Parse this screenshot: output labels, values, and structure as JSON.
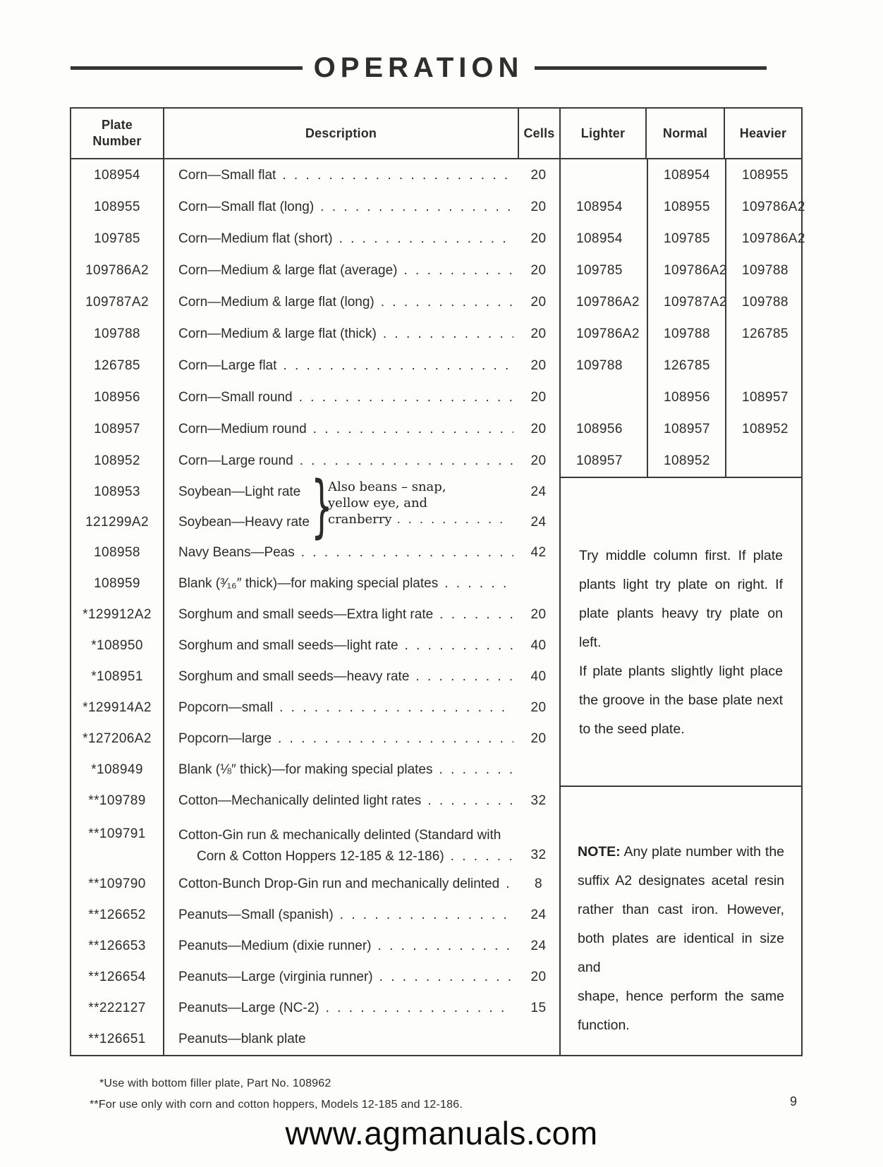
{
  "page": {
    "title": "OPERATION",
    "page_number": "9",
    "watermark": "www.agmanuals.com",
    "footnote1": "*Use with bottom filler plate, Part No. 108962",
    "footnote2": "**For use only with corn and cotton hoppers, Models 12-185 and 12-186."
  },
  "table": {
    "headers": {
      "plate": "Plate Number",
      "description": "Description",
      "cells": "Cells",
      "lighter": "Lighter",
      "normal": "Normal",
      "heavier": "Heavier"
    },
    "corn_rows": [
      {
        "plate": "108954",
        "desc": "Corn—Small flat",
        "cells": "20",
        "lighter": "",
        "normal": "108954",
        "heavier": "108955"
      },
      {
        "plate": "108955",
        "desc": "Corn—Small flat (long)",
        "cells": "20",
        "lighter": "108954",
        "normal": "108955",
        "heavier": "109786A2"
      },
      {
        "plate": "109785",
        "desc": "Corn—Medium flat (short)",
        "cells": "20",
        "lighter": "108954",
        "normal": "109785",
        "heavier": "109786A2"
      },
      {
        "plate": "109786A2",
        "desc": "Corn—Medium & large flat (average)",
        "cells": "20",
        "lighter": "109785",
        "normal": "109786A2",
        "heavier": "109788"
      },
      {
        "plate": "109787A2",
        "desc": "Corn—Medium & large flat (long)",
        "cells": "20",
        "lighter": "109786A2",
        "normal": "109787A2",
        "heavier": "109788"
      },
      {
        "plate": "109788",
        "desc": "Corn—Medium & large flat (thick)",
        "cells": "20",
        "lighter": "109786A2",
        "normal": "109788",
        "heavier": "126785"
      },
      {
        "plate": "126785",
        "desc": "Corn—Large flat",
        "cells": "20",
        "lighter": "109788",
        "normal": "126785",
        "heavier": ""
      },
      {
        "plate": "108956",
        "desc": "Corn—Small round",
        "cells": "20",
        "lighter": "",
        "normal": "108956",
        "heavier": "108957"
      },
      {
        "plate": "108957",
        "desc": "Corn—Medium round",
        "cells": "20",
        "lighter": "108956",
        "normal": "108957",
        "heavier": "108952"
      },
      {
        "plate": "108952",
        "desc": "Corn—Large round",
        "cells": "20",
        "lighter": "108957",
        "normal": "108952",
        "heavier": ""
      }
    ],
    "soybean": {
      "rows": [
        {
          "plate": "108953",
          "desc": "Soybean—Light rate",
          "cells": "24"
        },
        {
          "plate": "121299A2",
          "desc": "Soybean—Heavy rate",
          "cells": "24"
        }
      ],
      "brace": "}",
      "note_line1": "Also beans – snap,",
      "note_line2": "yellow eye, and",
      "note_line3": "cranberry"
    },
    "mid_rows": [
      {
        "plate": "108958",
        "desc": "Navy Beans—Peas",
        "cells": "42"
      },
      {
        "plate": "108959",
        "desc": "Blank (³⁄₁₆″ thick)—for making special plates",
        "cells": ""
      },
      {
        "plate": "*129912A2",
        "desc": "Sorghum and small seeds—Extra light rate",
        "cells": "20"
      },
      {
        "plate": "*108950",
        "desc": "Sorghum and small seeds—light rate",
        "cells": "40"
      },
      {
        "plate": "*108951",
        "desc": "Sorghum and small seeds—heavy rate",
        "cells": "40"
      },
      {
        "plate": "*129914A2",
        "desc": "Popcorn—small",
        "cells": "20"
      },
      {
        "plate": "*127206A2",
        "desc": "Popcorn—large",
        "cells": "20"
      },
      {
        "plate": "*108949",
        "desc": "Blank (⅛″ thick)—for making special plates",
        "cells": ""
      }
    ],
    "bottom_rows": [
      {
        "plate": "**109789",
        "desc": "Cotton—Mechanically delinted light rates",
        "cells": "32"
      },
      {
        "plate": "**109790",
        "desc": "Cotton-Bunch Drop-Gin run and mechanically delinted",
        "cells": "8"
      },
      {
        "plate": "**126652",
        "desc": "Peanuts—Small (spanish)",
        "cells": "24"
      },
      {
        "plate": "**126653",
        "desc": "Peanuts—Medium (dixie runner)",
        "cells": "24"
      },
      {
        "plate": "**126654",
        "desc": "Peanuts—Large (virginia runner)",
        "cells": "20"
      },
      {
        "plate": "**222127",
        "desc": "Peanuts—Large (NC-2)",
        "cells": "15"
      },
      {
        "plate": "**126651",
        "desc": "Peanuts—blank plate",
        "cells": ""
      }
    ],
    "cotton_gin_row": {
      "plate": "**109791",
      "desc_line1": "Cotton-Gin run & mechanically delinted (Standard with",
      "desc_line2": "Corn & Cotton Hoppers 12-185 & 12-186)",
      "cells": "32"
    },
    "advice": {
      "lines": [
        "Try middle column first. If plate",
        "plants light try plate on right. If",
        "plate plants heavy try plate on left.",
        "If plate plants slightly light place",
        "the groove in the base plate next",
        "to the seed plate."
      ]
    },
    "note": {
      "label": "NOTE:",
      "lines": [
        "Any plate number with the",
        "suffix A2 designates acetal resin",
        "rather than cast iron. However,",
        "both plates are identical in size and",
        "shape, hence perform the same",
        "function."
      ]
    }
  }
}
